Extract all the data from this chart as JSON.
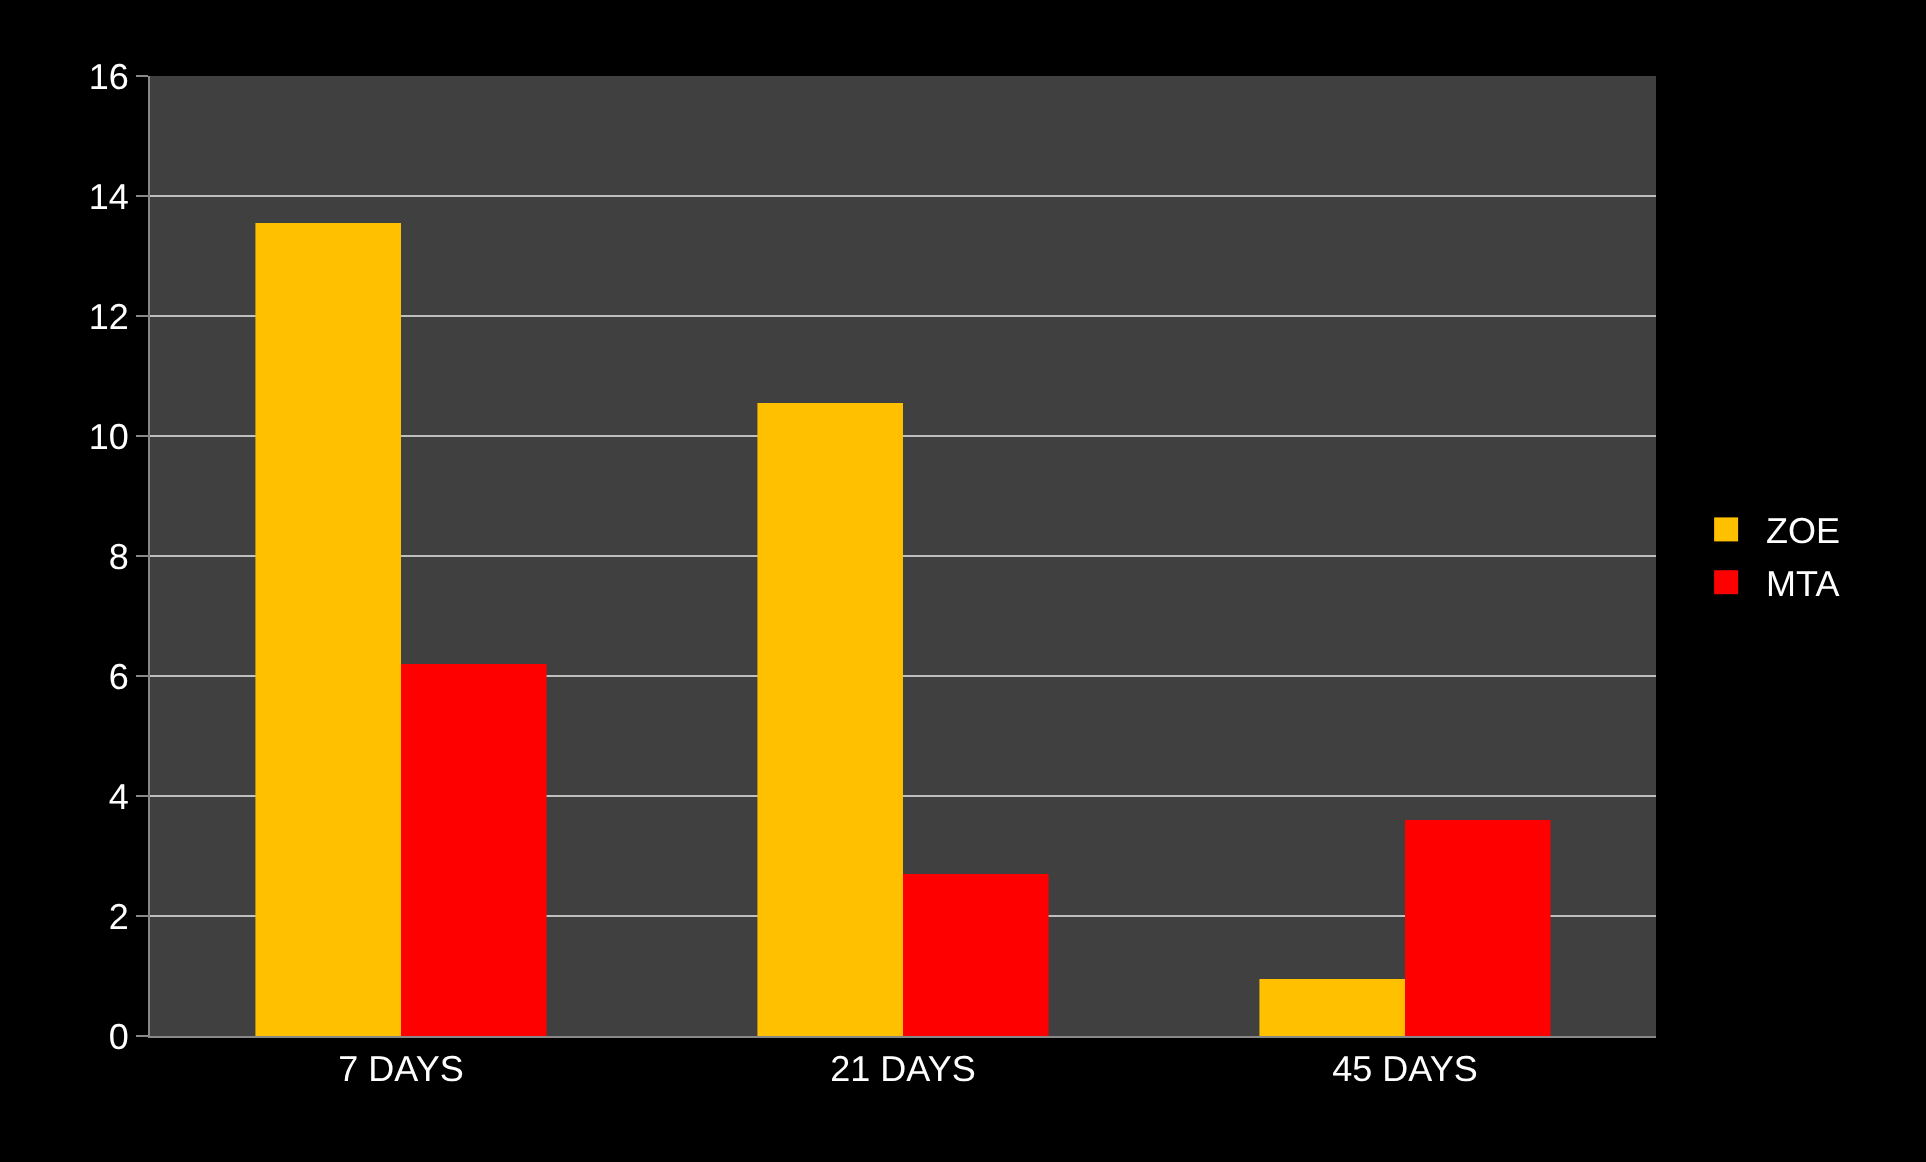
{
  "chart_data": {
    "type": "bar",
    "categories": [
      "7 DAYS",
      "21 DAYS",
      "45 DAYS"
    ],
    "series": [
      {
        "name": "ZOE",
        "color": "#ffc000",
        "values": [
          13.55,
          10.55,
          0.95
        ]
      },
      {
        "name": "MTA",
        "color": "#ff0000",
        "values": [
          6.2,
          2.7,
          3.6
        ]
      }
    ],
    "ylim": [
      0,
      16
    ],
    "yticks": [
      0,
      2,
      4,
      6,
      8,
      10,
      12,
      14,
      16
    ],
    "grid": "y",
    "legend": "right"
  }
}
